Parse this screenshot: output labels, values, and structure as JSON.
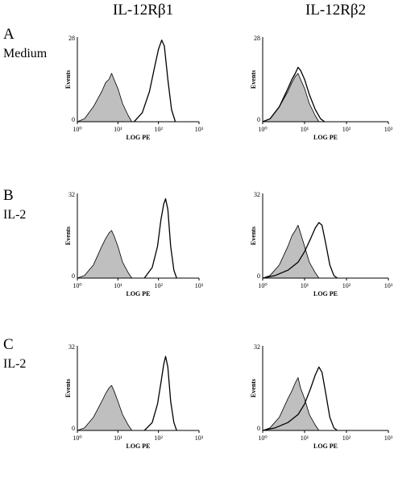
{
  "column_headers": [
    "IL-12Rβ1",
    "IL-12Rβ2"
  ],
  "rows": [
    {
      "letter": "A",
      "label": "Medium"
    },
    {
      "letter": "B",
      "label": "IL-2"
    },
    {
      "letter": "C",
      "label": "IL-2"
    }
  ],
  "chart_data": [
    {
      "type": "area",
      "panel": "A-IL-12Rβ1",
      "ylabel": "Events",
      "xlabel": "LOG PE",
      "xscale": "log",
      "xlim": [
        1,
        1000
      ],
      "xticks": [
        "10⁰",
        "10¹",
        "10²",
        "10³"
      ],
      "ylim": [
        0,
        28
      ],
      "ytick_max": "28",
      "series": [
        {
          "role": "control",
          "fill": "#bfbfbf",
          "x": [
            1.0,
            1.5,
            2.5,
            4,
            5,
            6,
            7,
            8,
            10,
            13,
            18,
            22
          ],
          "values": [
            0,
            1,
            5,
            10,
            13,
            14,
            16,
            14,
            11,
            6,
            2,
            0
          ]
        },
        {
          "role": "stained",
          "fill": "none",
          "x": [
            25,
            40,
            60,
            80,
            100,
            120,
            140,
            170,
            210,
            260
          ],
          "values": [
            0,
            3,
            10,
            18,
            24,
            27,
            25,
            14,
            4,
            0
          ]
        }
      ]
    },
    {
      "type": "area",
      "panel": "A-IL-12Rβ2",
      "ylabel": "Events",
      "xlabel": "LOG PE",
      "xscale": "log",
      "xlim": [
        1,
        1000
      ],
      "xticks": [
        "10⁰",
        "10¹",
        "10²",
        "10³"
      ],
      "ylim": [
        0,
        28
      ],
      "ytick_max": "28",
      "series": [
        {
          "role": "control",
          "fill": "#bfbfbf",
          "x": [
            1.0,
            1.5,
            2.5,
            4,
            5,
            6,
            7,
            8,
            10,
            13,
            18,
            22
          ],
          "values": [
            0,
            1,
            5,
            10,
            13,
            15,
            16,
            14,
            11,
            6,
            2,
            0
          ]
        },
        {
          "role": "stained",
          "fill": "none",
          "x": [
            1.0,
            1.5,
            2.5,
            4,
            5,
            6,
            7,
            8,
            10,
            13,
            18,
            24,
            30
          ],
          "values": [
            0,
            1,
            5,
            11,
            14,
            16,
            18,
            17,
            14,
            9,
            4,
            1,
            0
          ]
        }
      ]
    },
    {
      "type": "area",
      "panel": "B-IL-12Rβ1",
      "ylabel": "Events",
      "xlabel": "LOG PE",
      "xscale": "log",
      "xlim": [
        1,
        1000
      ],
      "xticks": [
        "10⁰",
        "10¹",
        "10²",
        "10³"
      ],
      "ylim": [
        0,
        32
      ],
      "ytick_max": "32",
      "series": [
        {
          "role": "control",
          "fill": "#bfbfbf",
          "x": [
            1.0,
            1.5,
            2.5,
            4,
            5,
            6,
            7,
            8,
            10,
            13,
            18,
            22
          ],
          "values": [
            0,
            1,
            5,
            12,
            15,
            17,
            18,
            16,
            12,
            6,
            2,
            0
          ]
        },
        {
          "role": "stained",
          "fill": "none",
          "x": [
            45,
            70,
            95,
            115,
            135,
            150,
            170,
            200,
            240,
            280
          ],
          "values": [
            0,
            4,
            12,
            22,
            28,
            30,
            26,
            12,
            3,
            0
          ]
        }
      ]
    },
    {
      "type": "area",
      "panel": "B-IL-12Rβ2",
      "ylabel": "Events",
      "xlabel": "LOG PE",
      "xscale": "log",
      "xlim": [
        1,
        1000
      ],
      "xticks": [
        "10⁰",
        "10¹",
        "10²",
        "10³"
      ],
      "ylim": [
        0,
        32
      ],
      "ytick_max": "32",
      "series": [
        {
          "role": "control",
          "fill": "#bfbfbf",
          "x": [
            1.0,
            1.5,
            2.5,
            4,
            5,
            6,
            7,
            8,
            10,
            13,
            18,
            22
          ],
          "values": [
            0,
            1,
            5,
            12,
            16,
            18,
            20,
            17,
            12,
            6,
            2,
            0
          ]
        },
        {
          "role": "stained",
          "fill": "none",
          "x": [
            1.0,
            2,
            4,
            7,
            10,
            14,
            18,
            22,
            26,
            32,
            40,
            50,
            60
          ],
          "values": [
            0,
            1,
            3,
            6,
            10,
            15,
            19,
            21,
            20,
            13,
            5,
            1,
            0
          ]
        }
      ]
    },
    {
      "type": "area",
      "panel": "C-IL-12Rβ1",
      "ylabel": "Events",
      "xlabel": "LOG PE",
      "xscale": "log",
      "xlim": [
        1,
        1000
      ],
      "xticks": [
        "10⁰",
        "10¹",
        "10²",
        "10³"
      ],
      "ylim": [
        0,
        32
      ],
      "ytick_max": "32",
      "series": [
        {
          "role": "control",
          "fill": "#bfbfbf",
          "x": [
            1.0,
            1.5,
            2.5,
            4,
            5,
            6,
            7,
            8,
            10,
            13,
            18,
            22
          ],
          "values": [
            0,
            1,
            5,
            11,
            14,
            16,
            17,
            15,
            11,
            6,
            2,
            0
          ]
        },
        {
          "role": "stained",
          "fill": "none",
          "x": [
            45,
            70,
            95,
            115,
            135,
            150,
            170,
            200,
            240,
            280
          ],
          "values": [
            0,
            3,
            10,
            18,
            25,
            28,
            24,
            11,
            3,
            0
          ]
        }
      ]
    },
    {
      "type": "area",
      "panel": "C-IL-12Rβ2",
      "ylabel": "Events",
      "xlabel": "LOG PE",
      "xscale": "log",
      "xlim": [
        1,
        1000
      ],
      "xticks": [
        "10⁰",
        "10¹",
        "10²",
        "10³"
      ],
      "ylim": [
        0,
        32
      ],
      "ytick_max": "32",
      "series": [
        {
          "role": "control",
          "fill": "#bfbfbf",
          "x": [
            1.0,
            1.5,
            2.5,
            4,
            5,
            6,
            7,
            8,
            10,
            13,
            18,
            22
          ],
          "values": [
            0,
            1,
            5,
            12,
            15,
            18,
            20,
            16,
            12,
            6,
            2,
            0
          ]
        },
        {
          "role": "stained",
          "fill": "none",
          "x": [
            1.0,
            2,
            4,
            7,
            10,
            14,
            18,
            22,
            26,
            32,
            40,
            50,
            60
          ],
          "values": [
            0,
            1,
            3,
            6,
            10,
            16,
            21,
            24,
            22,
            14,
            5,
            1,
            0
          ]
        }
      ]
    }
  ]
}
